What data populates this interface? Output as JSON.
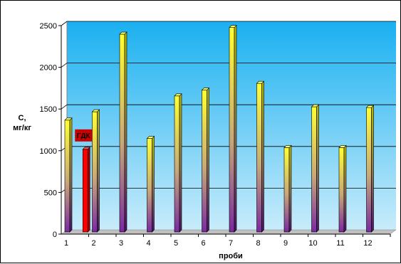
{
  "chart_data": {
    "type": "bar",
    "categories": [
      "1",
      "2",
      "3",
      "4",
      "5",
      "6",
      "7",
      "8",
      "9",
      "10",
      "11",
      "12"
    ],
    "series": [
      {
        "values": [
          1350,
          1450,
          2380,
          1130,
          1640,
          1710,
          2460,
          1790,
          1020,
          1510,
          1020,
          1500
        ]
      }
    ],
    "reference": {
      "label": "ГДК",
      "value": 1000,
      "color": "#ff0000"
    },
    "yticks": [
      0,
      500,
      1000,
      1500,
      2000,
      2500
    ],
    "ylim": [
      0,
      2500
    ],
    "ylabel_line1": "С,",
    "ylabel_line2": "мг/кг",
    "xlabel": "проби",
    "grid": true,
    "colors": {
      "wall_top": "#1ab0f0",
      "wall_bottom": "#c8ecfb",
      "bar_top": "#ffff33",
      "bar_mid": "#c8a878",
      "bar_bottom": "#7a2aa0",
      "reference_bar": "#ff0000",
      "label_box": "#cc0000"
    }
  }
}
